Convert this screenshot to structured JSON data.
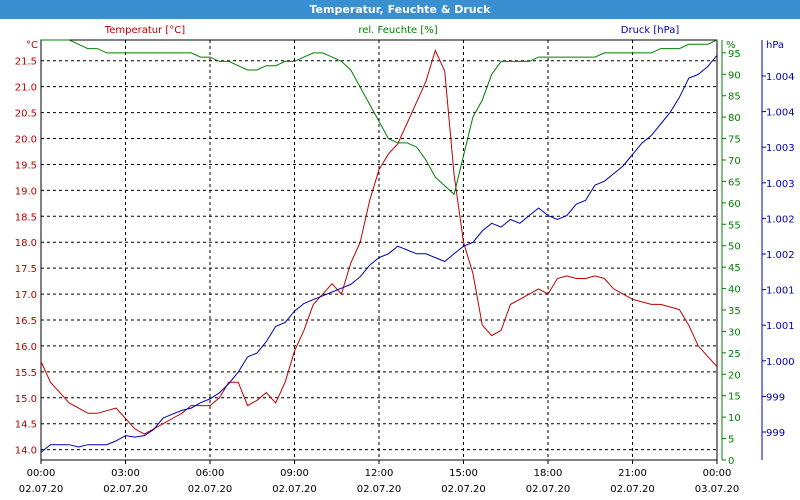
{
  "window": {
    "title": "Temperatur, Feuchte & Druck"
  },
  "chart_data": {
    "type": "line",
    "title": "Temperatur, Feuchte & Druck",
    "x": [
      "02.07.20 00:00",
      "02.07.20 00:20",
      "02.07.20 00:40",
      "02.07.20 01:00",
      "02.07.20 01:20",
      "02.07.20 01:40",
      "02.07.20 02:00",
      "02.07.20 02:20",
      "02.07.20 02:40",
      "02.07.20 03:00",
      "02.07.20 03:20",
      "02.07.20 03:40",
      "02.07.20 04:00",
      "02.07.20 04:20",
      "02.07.20 04:40",
      "02.07.20 05:00",
      "02.07.20 05:20",
      "02.07.20 05:40",
      "02.07.20 06:00",
      "02.07.20 06:20",
      "02.07.20 06:40",
      "02.07.20 07:00",
      "02.07.20 07:20",
      "02.07.20 07:40",
      "02.07.20 08:00",
      "02.07.20 08:20",
      "02.07.20 08:40",
      "02.07.20 09:00",
      "02.07.20 09:20",
      "02.07.20 09:40",
      "02.07.20 10:00",
      "02.07.20 10:20",
      "02.07.20 10:40",
      "02.07.20 11:00",
      "02.07.20 11:20",
      "02.07.20 11:40",
      "02.07.20 12:00",
      "02.07.20 12:20",
      "02.07.20 12:40",
      "02.07.20 13:00",
      "02.07.20 13:20",
      "02.07.20 13:40",
      "02.07.20 14:00",
      "02.07.20 14:20",
      "02.07.20 14:40",
      "02.07.20 15:00",
      "02.07.20 15:20",
      "02.07.20 15:40",
      "02.07.20 16:00",
      "02.07.20 16:20",
      "02.07.20 16:40",
      "02.07.20 17:00",
      "02.07.20 17:20",
      "02.07.20 17:40",
      "02.07.20 18:00",
      "02.07.20 18:20",
      "02.07.20 18:40",
      "02.07.20 19:00",
      "02.07.20 19:20",
      "02.07.20 19:40",
      "02.07.20 20:00",
      "02.07.20 20:20",
      "02.07.20 20:40",
      "02.07.20 21:00",
      "02.07.20 21:20",
      "02.07.20 21:40",
      "02.07.20 22:00",
      "02.07.20 22:20",
      "02.07.20 22:40",
      "02.07.20 23:00",
      "02.07.20 23:20",
      "02.07.20 23:40",
      "03.07.20 00:00"
    ],
    "x_ticks": [
      {
        "time": "00:00",
        "date": "02.07.20"
      },
      {
        "time": "03:00",
        "date": "02.07.20"
      },
      {
        "time": "06:00",
        "date": "02.07.20"
      },
      {
        "time": "09:00",
        "date": "02.07.20"
      },
      {
        "time": "12:00",
        "date": "02.07.20"
      },
      {
        "time": "15:00",
        "date": "02.07.20"
      },
      {
        "time": "18:00",
        "date": "02.07.20"
      },
      {
        "time": "21:00",
        "date": "02.07.20"
      },
      {
        "time": "00:00",
        "date": "03.07.20"
      }
    ],
    "axes": {
      "temperature": {
        "label": "Temperatur [°C]",
        "unit": "°C",
        "ylim": [
          13.8,
          21.9
        ],
        "ticks": [
          "14.0",
          "14.5",
          "15.0",
          "15.5",
          "16.0",
          "16.5",
          "17.0",
          "17.5",
          "18.0",
          "18.5",
          "19.0",
          "19.5",
          "20.0",
          "20.5",
          "21.0",
          "21.5"
        ],
        "color": "#c00000"
      },
      "humidity": {
        "label": "rel. Feuchte [%]",
        "unit": "%",
        "ylim": [
          0,
          98
        ],
        "ticks": [
          "0",
          "5",
          "10",
          "15",
          "20",
          "25",
          "30",
          "35",
          "40",
          "45",
          "50",
          "55",
          "60",
          "65",
          "70",
          "75",
          "80",
          "85",
          "90",
          "95"
        ],
        "color": "#008000"
      },
      "pressure": {
        "label": "Druck [hPa]",
        "unit": "hPa",
        "ylim": [
          998.8,
          1004.3
        ],
        "ticks": [
          "999",
          "999",
          "1.000",
          "1.001",
          "1.001",
          "1.002",
          "1.002",
          "1.003",
          "1.003",
          "1.004",
          "1.004"
        ],
        "color": "#0000b0"
      }
    },
    "series": [
      {
        "name": "Temperatur [°C]",
        "axis": "temperature",
        "color": "#c00000",
        "values": [
          15.7,
          15.3,
          15.1,
          14.9,
          14.8,
          14.7,
          14.7,
          14.75,
          14.8,
          14.6,
          14.4,
          14.3,
          14.4,
          14.5,
          14.6,
          14.7,
          14.85,
          14.85,
          14.85,
          15.0,
          15.3,
          15.3,
          14.85,
          14.95,
          15.1,
          14.9,
          15.3,
          15.9,
          16.3,
          16.8,
          17.0,
          17.2,
          17.0,
          17.6,
          18.0,
          18.8,
          19.4,
          19.7,
          19.9,
          20.3,
          20.7,
          21.1,
          21.7,
          21.3,
          19.3,
          18.0,
          17.4,
          16.4,
          16.2,
          16.3,
          16.8,
          16.9,
          17.0,
          17.1,
          17.0,
          17.3,
          17.35,
          17.3,
          17.3,
          17.35,
          17.3,
          17.1,
          17.0,
          16.9,
          16.85,
          16.8,
          16.8,
          16.75,
          16.7,
          16.4,
          16.0,
          15.8,
          15.6
        ]
      },
      {
        "name": "rel. Feuchte [%]",
        "axis": "humidity",
        "color": "#008000",
        "values": [
          98,
          98,
          98,
          98,
          97,
          96,
          96,
          95,
          95,
          95,
          95,
          95,
          95,
          95,
          95,
          95,
          95,
          94,
          94,
          93,
          93,
          92,
          91,
          91,
          92,
          92,
          93,
          93,
          94,
          95,
          95,
          94,
          93,
          91,
          87,
          83,
          79,
          75,
          74,
          74,
          73,
          70,
          66,
          64,
          62,
          71,
          80,
          84,
          90,
          93,
          93,
          93,
          93,
          94,
          94,
          94,
          94,
          94,
          94,
          94,
          95,
          95,
          95,
          95,
          95,
          95,
          96,
          96,
          96,
          97,
          97,
          97,
          98
        ]
      },
      {
        "name": "Druck [hPa]",
        "axis": "pressure",
        "color": "#0000b0",
        "values": [
          998.9,
          999.0,
          999.0,
          999.0,
          998.97,
          999.0,
          999.0,
          999.0,
          999.05,
          999.12,
          999.1,
          999.12,
          999.2,
          999.35,
          999.4,
          999.45,
          999.48,
          999.55,
          999.6,
          999.68,
          999.8,
          999.95,
          1000.15,
          1000.2,
          1000.35,
          1000.55,
          1000.6,
          1000.75,
          1000.85,
          1000.9,
          1000.95,
          1001.0,
          1001.05,
          1001.1,
          1001.2,
          1001.35,
          1001.45,
          1001.5,
          1001.6,
          1001.55,
          1001.5,
          1001.5,
          1001.45,
          1001.4,
          1001.5,
          1001.6,
          1001.65,
          1001.8,
          1001.9,
          1001.85,
          1001.95,
          1001.9,
          1002.0,
          1002.1,
          1002.0,
          1001.95,
          1002.0,
          1002.15,
          1002.2,
          1002.4,
          1002.45,
          1002.55,
          1002.65,
          1002.8,
          1002.95,
          1003.05,
          1003.2,
          1003.35,
          1003.55,
          1003.8,
          1003.85,
          1003.95,
          1004.1
        ]
      }
    ],
    "grid": true
  }
}
